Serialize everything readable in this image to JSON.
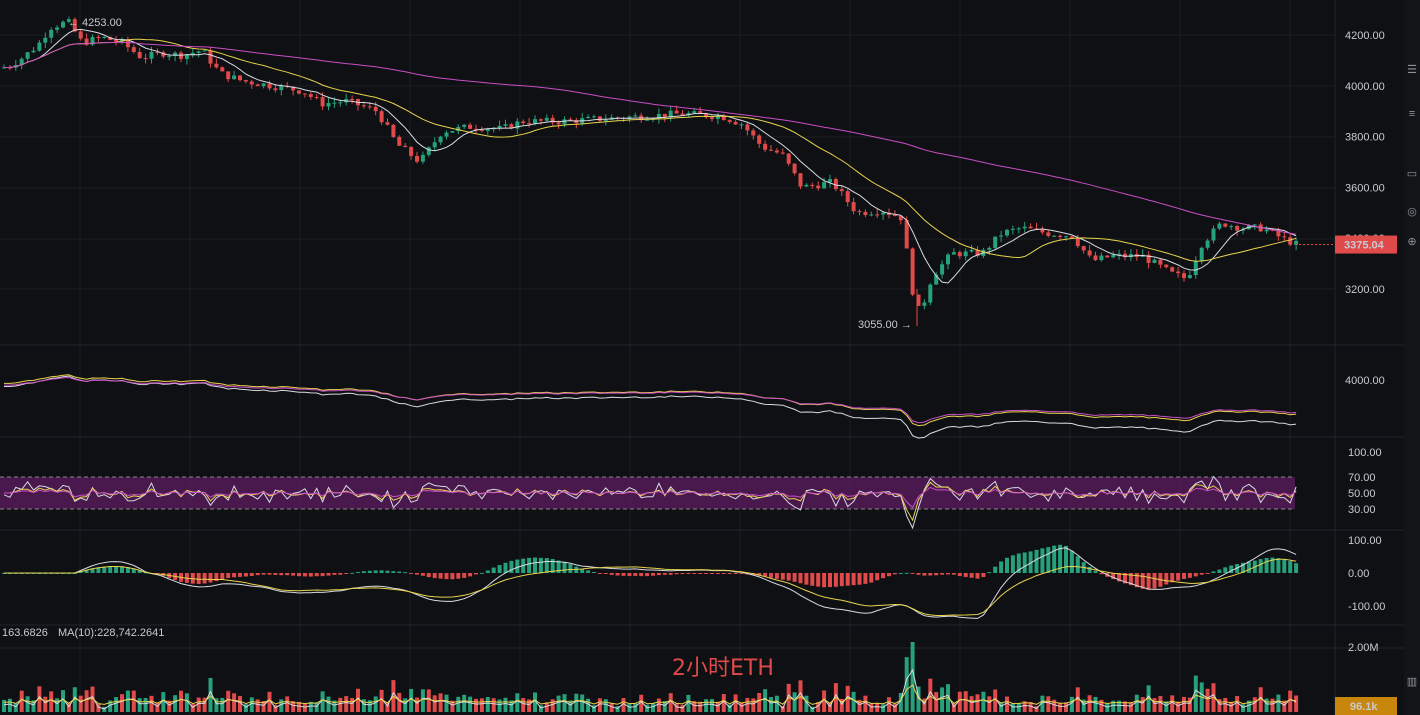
{
  "chart_data": {
    "type": "candlestick",
    "asset": "ETH",
    "timeframe_label": "2小时ETH",
    "price_axis": {
      "ticks": [
        "4200.00",
        "4000.00",
        "3800.00",
        "3600.00",
        "3400.00",
        "3200.00"
      ],
      "range": [
        3040,
        4290
      ]
    },
    "last_price": "3375.04",
    "high_marker": "4253.00",
    "low_marker": "3055.00",
    "price_path": [
      [
        0,
        4070
      ],
      [
        8,
        4080
      ],
      [
        20,
        4110
      ],
      [
        36,
        4160
      ],
      [
        48,
        4230
      ],
      [
        66,
        4253
      ],
      [
        80,
        4170
      ],
      [
        100,
        4190
      ],
      [
        120,
        4170
      ],
      [
        140,
        4110
      ],
      [
        160,
        4130
      ],
      [
        180,
        4120
      ],
      [
        200,
        4140
      ],
      [
        218,
        4050
      ],
      [
        240,
        4020
      ],
      [
        270,
        4000
      ],
      [
        300,
        3980
      ],
      [
        320,
        3930
      ],
      [
        345,
        3940
      ],
      [
        375,
        3900
      ],
      [
        395,
        3770
      ],
      [
        418,
        3700
      ],
      [
        440,
        3820
      ],
      [
        470,
        3840
      ],
      [
        500,
        3830
      ],
      [
        520,
        3860
      ],
      [
        560,
        3860
      ],
      [
        600,
        3870
      ],
      [
        640,
        3880
      ],
      [
        680,
        3890
      ],
      [
        720,
        3880
      ],
      [
        740,
        3850
      ],
      [
        760,
        3760
      ],
      [
        780,
        3730
      ],
      [
        800,
        3600
      ],
      [
        830,
        3620
      ],
      [
        855,
        3500
      ],
      [
        880,
        3510
      ],
      [
        900,
        3480
      ],
      [
        910,
        3200
      ],
      [
        918,
        3100
      ],
      [
        930,
        3250
      ],
      [
        950,
        3340
      ],
      [
        980,
        3340
      ],
      [
        1000,
        3420
      ],
      [
        1020,
        3440
      ],
      [
        1045,
        3420
      ],
      [
        1070,
        3410
      ],
      [
        1090,
        3310
      ],
      [
        1110,
        3330
      ],
      [
        1140,
        3330
      ],
      [
        1170,
        3260
      ],
      [
        1185,
        3240
      ],
      [
        1200,
        3380
      ],
      [
        1220,
        3460
      ],
      [
        1240,
        3440
      ],
      [
        1260,
        3440
      ],
      [
        1280,
        3400
      ],
      [
        1295,
        3375
      ]
    ],
    "ma_panel_label": "4000.00",
    "rsi": {
      "ticks": [
        "100.00",
        "70.00",
        "50.00",
        "30.00"
      ],
      "upper": 70,
      "lower": 30
    },
    "macd": {
      "ticks": [
        "100.00",
        "0.00",
        "-100.00"
      ]
    },
    "volume": {
      "label_a": "163.6826",
      "label_b": "MA(10):228,742.2641",
      "tick": "2.00M",
      "last": "96.1k"
    }
  },
  "colors": {
    "bg": "#0f1013",
    "up": "#26a17b",
    "down": "#e04a4a",
    "ma_white": "#d8dbe2",
    "ma_yellow": "#e8d44d",
    "ma_pink": "#c94ec6",
    "rsi_band": "#5d1c63"
  }
}
